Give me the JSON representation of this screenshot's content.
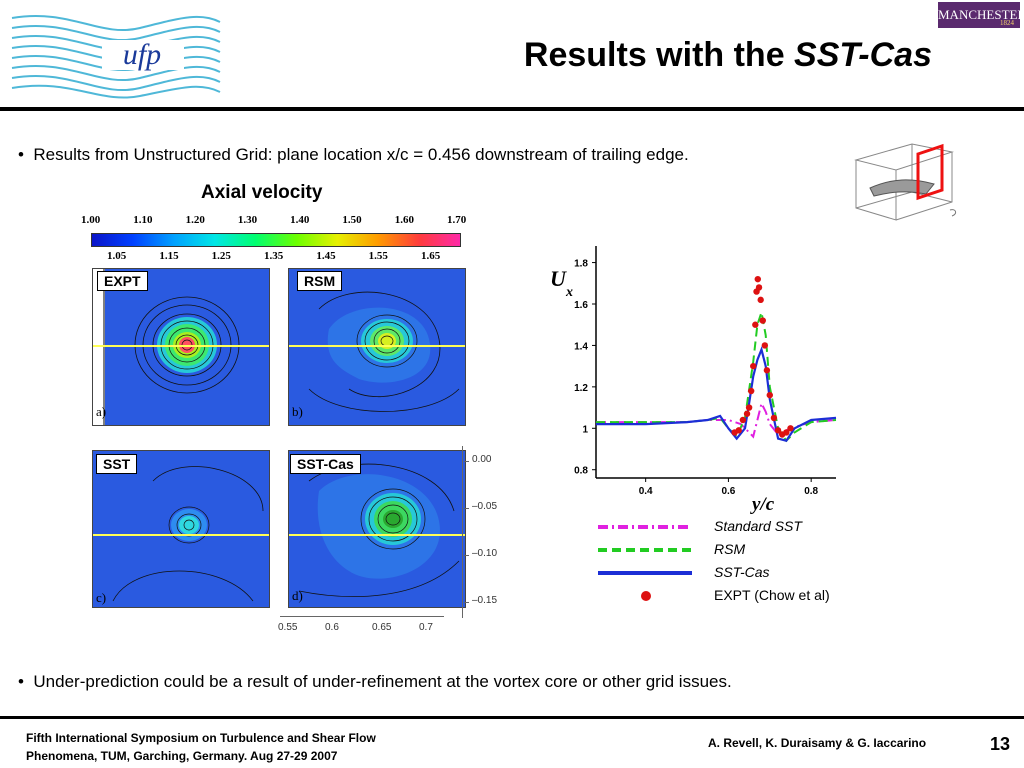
{
  "header": {
    "title_prefix": "Results with the ",
    "title_emph": "SST-Cas",
    "university_badge": "MANCHESTER",
    "university_year": "1824",
    "logo_text": "ufp"
  },
  "bullets": {
    "first": "Results from Unstructured Grid: plane location x/c = 0.456 downstream of trailing edge.",
    "second": "Under-prediction could be a result of under-refinement at the vortex core or other grid issues."
  },
  "contours": {
    "title": "Axial velocity",
    "colorbar_top_ticks": [
      "1.00",
      "1.10",
      "1.20",
      "1.30",
      "1.40",
      "1.50",
      "1.60",
      "1.70"
    ],
    "colorbar_bottom_ticks": [
      "1.05",
      "1.15",
      "1.25",
      "1.35",
      "1.45",
      "1.55",
      "1.65"
    ],
    "panels": [
      {
        "label": "EXPT",
        "corner": "a)"
      },
      {
        "label": "RSM",
        "corner": "b)"
      },
      {
        "label": "SST",
        "corner": "c)"
      },
      {
        "label": "SST-Cas",
        "corner": "d)"
      }
    ],
    "y_axis_ticks": [
      "0.00",
      "–0.05",
      "–0.10",
      "–0.15"
    ],
    "x_axis_ticks": [
      "0.55",
      "0.6",
      "0.65",
      "0.7"
    ]
  },
  "chart_data": {
    "type": "line",
    "title": "",
    "xlabel": "y/c",
    "ylabel": "U",
    "ylabel_sub": "x",
    "xlim": [
      0.28,
      0.86
    ],
    "ylim": [
      0.76,
      1.88
    ],
    "x_ticks": [
      "0.4",
      "0.6",
      "0.8"
    ],
    "y_ticks": [
      "0.8",
      "1",
      "1.2",
      "1.4",
      "1.6",
      "1.8"
    ],
    "series": [
      {
        "name": "Standard SST",
        "style": "dashdot",
        "color": "#e020e0",
        "x": [
          0.28,
          0.4,
          0.5,
          0.55,
          0.6,
          0.63,
          0.65,
          0.66,
          0.67,
          0.68,
          0.69,
          0.7,
          0.72,
          0.75,
          0.8,
          0.86
        ],
        "y": [
          1.03,
          1.03,
          1.03,
          1.04,
          1.04,
          1.02,
          0.98,
          0.96,
          1.04,
          1.12,
          1.08,
          1.02,
          0.97,
          1.0,
          1.03,
          1.04
        ]
      },
      {
        "name": "RSM",
        "style": "dashed",
        "color": "#22cc22",
        "x": [
          0.28,
          0.4,
          0.5,
          0.55,
          0.58,
          0.6,
          0.62,
          0.64,
          0.66,
          0.67,
          0.68,
          0.69,
          0.7,
          0.72,
          0.74,
          0.76,
          0.8,
          0.86
        ],
        "y": [
          1.03,
          1.03,
          1.03,
          1.04,
          1.05,
          1.0,
          0.96,
          1.05,
          1.32,
          1.5,
          1.56,
          1.45,
          1.2,
          1.0,
          0.94,
          0.98,
          1.03,
          1.04
        ]
      },
      {
        "name": "SST-Cas",
        "style": "solid",
        "color": "#1c2ed6",
        "x": [
          0.28,
          0.4,
          0.5,
          0.55,
          0.58,
          0.6,
          0.62,
          0.64,
          0.65,
          0.66,
          0.67,
          0.68,
          0.69,
          0.7,
          0.72,
          0.74,
          0.76,
          0.8,
          0.86
        ],
        "y": [
          1.02,
          1.02,
          1.03,
          1.04,
          1.06,
          1.0,
          0.95,
          1.0,
          1.12,
          1.25,
          1.33,
          1.38,
          1.3,
          1.14,
          0.95,
          0.94,
          1.0,
          1.04,
          1.05
        ]
      },
      {
        "name": "EXPT (Chow et al)",
        "style": "markers",
        "color": "#dd1111",
        "x": [
          0.615,
          0.625,
          0.635,
          0.645,
          0.65,
          0.655,
          0.66,
          0.665,
          0.668,
          0.671,
          0.674,
          0.678,
          0.683,
          0.688,
          0.693,
          0.7,
          0.71,
          0.72,
          0.73,
          0.74,
          0.75
        ],
        "y": [
          0.98,
          0.99,
          1.04,
          1.07,
          1.1,
          1.18,
          1.3,
          1.5,
          1.66,
          1.72,
          1.68,
          1.62,
          1.52,
          1.4,
          1.28,
          1.16,
          1.05,
          0.99,
          0.97,
          0.98,
          1.0
        ]
      }
    ],
    "legend": "bottom-right"
  },
  "footer": {
    "conference_line1": "Fifth International Symposium on Turbulence and Shear Flow",
    "conference_line2": "Phenomena, TUM, Garching, Germany. Aug 27-29 2007",
    "authors": "A. Revell, K. Duraisamy & G. Iaccarino",
    "page_number": "13"
  },
  "colors": {
    "contour_background": "#2a5ae0",
    "cut_line": "#ffff55",
    "logo_lines": "#4fb8d8",
    "logo_text": "#1a3a9a"
  }
}
